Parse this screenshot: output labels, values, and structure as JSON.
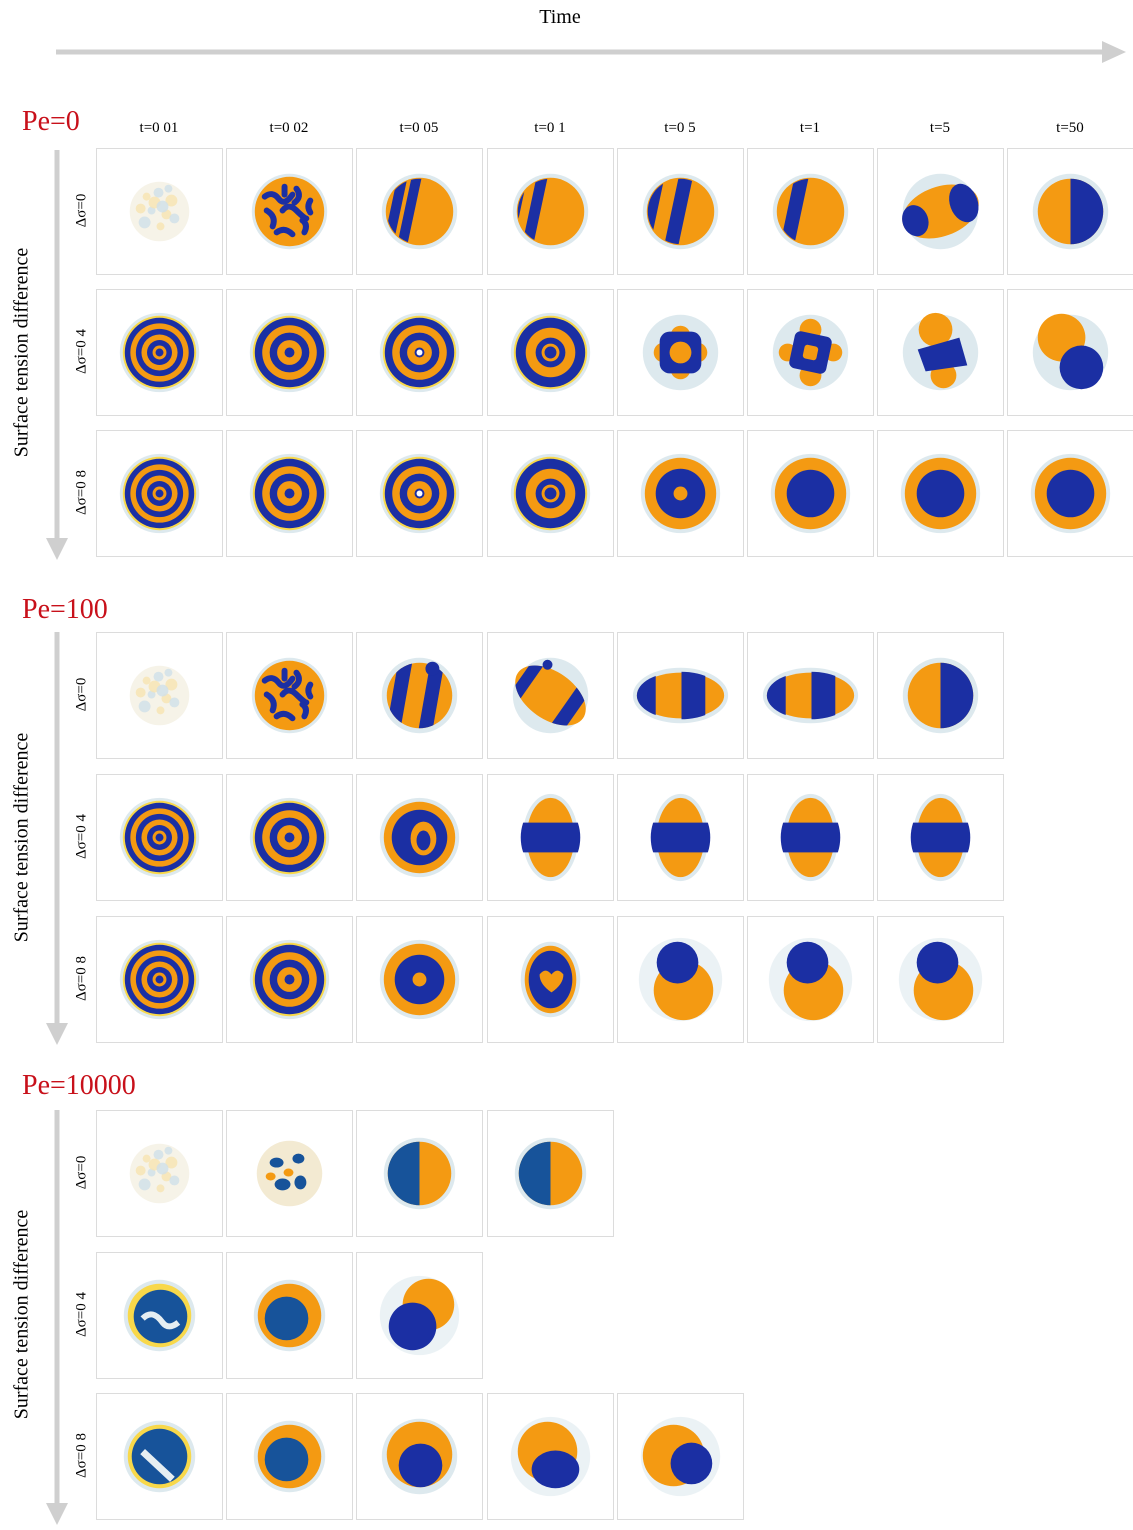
{
  "axis": {
    "time_label": "Time",
    "surface_label": "Surface tension difference"
  },
  "time_labels": [
    "t=0 01",
    "t=0 02",
    "t=0 05",
    "t=0 1",
    "t=0 5",
    "t=1",
    "t=5",
    "t=50"
  ],
  "colors": {
    "orange": "#f49a12",
    "blue": "#1b2fa3",
    "teal_blue": "#17539a",
    "yellow_rim": "#f8d84a",
    "pale": "#dde9ee",
    "arrow": "#cfcfcf",
    "title_red": "#c8101a",
    "border": "#dcdcdc"
  },
  "groups": [
    {
      "title": "Pe=0",
      "rows": [
        {
          "label": "Δσ=0",
          "panels": [
            "noise",
            "labyrinth",
            "stripes-dense",
            "stripes",
            "stripes-few",
            "stripes-three",
            "split-tilt",
            "split-vertical"
          ]
        },
        {
          "label": "Δσ=0 4",
          "panels": [
            "rings3",
            "rings2",
            "rings2-dot",
            "rings-core",
            "blob-ring",
            "blob-square",
            "janus-tilt",
            "janus-top-orange"
          ]
        },
        {
          "label": "Δσ=0 8",
          "panels": [
            "rings3",
            "rings2",
            "rings2-dot",
            "rings-core",
            "ring-dot",
            "core-shell",
            "core-shell",
            "core-shell"
          ]
        }
      ]
    },
    {
      "title": "Pe=100",
      "rows": [
        {
          "label": "Δσ=0",
          "panels": [
            "noise",
            "labyrinth",
            "stripes-blob",
            "stripes-tilt",
            "three-band",
            "three-band",
            "split-vertical"
          ]
        },
        {
          "label": "Δσ=0 4",
          "panels": [
            "rings3",
            "rings2",
            "ring-offset",
            "sandwich-vertical",
            "sandwich-vertical",
            "sandwich-vertical",
            "sandwich-vertical"
          ]
        },
        {
          "label": "Δσ=0 8",
          "panels": [
            "rings3",
            "rings2",
            "ring-dot",
            "heart",
            "snowman",
            "snowman",
            "snowman"
          ]
        }
      ]
    },
    {
      "title": "Pe=10000",
      "rows": [
        {
          "label": "Δσ=0",
          "panels": [
            "noise",
            "labyrinth-teal",
            "split-teal",
            "split-teal"
          ]
        },
        {
          "label": "Δσ=0 4",
          "panels": [
            "mixed-teal",
            "core-teal",
            "janus-offset"
          ]
        },
        {
          "label": "Δσ=0 8",
          "panels": [
            "stripe-teal",
            "core-teal",
            "core-offset",
            "core-offset-low",
            "core-offset-right"
          ]
        }
      ]
    }
  ]
}
